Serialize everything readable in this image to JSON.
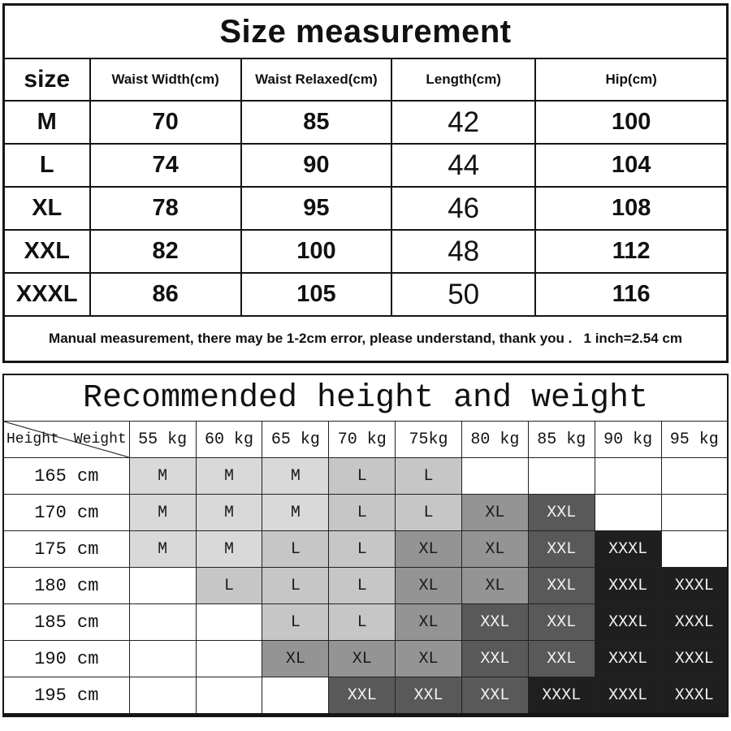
{
  "size_table": {
    "title": "Size measurement",
    "columns": [
      "size",
      "Waist Width(cm)",
      "Waist Relaxed(cm)",
      "Length(cm)",
      "Hip(cm)"
    ],
    "rows": [
      {
        "size": "M",
        "values": [
          "70",
          "85",
          "42",
          "100"
        ]
      },
      {
        "size": "L",
        "values": [
          "74",
          "90",
          "44",
          "104"
        ]
      },
      {
        "size": "XL",
        "values": [
          "78",
          "95",
          "46",
          "108"
        ]
      },
      {
        "size": "XXL",
        "values": [
          "82",
          "100",
          "48",
          "112"
        ]
      },
      {
        "size": "XXXL",
        "values": [
          "86",
          "105",
          "50",
          "116"
        ]
      }
    ],
    "note": "Manual measurement, there may be 1-2cm error, please understand, thank you .   1 inch=2.54 cm"
  },
  "recommendation_table": {
    "title": "Recommended height and weight",
    "corner": {
      "row_axis": "Height",
      "col_axis": "Weight"
    },
    "weight_headers": [
      "55 kg",
      "60 kg",
      "65 kg",
      "70 kg",
      "75kg",
      "80 kg",
      "85 kg",
      "90 kg",
      "95 kg"
    ],
    "rows": [
      {
        "height": "165 cm",
        "cells": [
          "M",
          "M",
          "M",
          "L",
          "L",
          "",
          "",
          "",
          ""
        ]
      },
      {
        "height": "170 cm",
        "cells": [
          "M",
          "M",
          "M",
          "L",
          "L",
          "XL",
          "XXL",
          "",
          ""
        ]
      },
      {
        "height": "175 cm",
        "cells": [
          "M",
          "M",
          "L",
          "L",
          "XL",
          "XL",
          "XXL",
          "XXXL",
          ""
        ]
      },
      {
        "height": "180 cm",
        "cells": [
          "",
          "L",
          "L",
          "L",
          "XL",
          "XL",
          "XXL",
          "XXXL",
          "XXXL"
        ]
      },
      {
        "height": "185 cm",
        "cells": [
          "",
          "",
          "L",
          "L",
          "XL",
          "XXL",
          "XXL",
          "XXXL",
          "XXXL"
        ]
      },
      {
        "height": "190 cm",
        "cells": [
          "",
          "",
          "XL",
          "XL",
          "XL",
          "XXL",
          "XXL",
          "XXXL",
          "XXXL"
        ]
      },
      {
        "height": "195 cm",
        "cells": [
          "",
          "",
          "",
          "XXL",
          "XXL",
          "XXL",
          "XXXL",
          "XXXL",
          "XXXL"
        ]
      }
    ],
    "size_colors": {
      "M": {
        "bg": "#d9d9d9",
        "text": "#1a1a1a"
      },
      "L": {
        "bg": "#c6c6c6",
        "text": "#1a1a1a"
      },
      "XL": {
        "bg": "#949494",
        "text": "#1a1a1a"
      },
      "XXL": {
        "bg": "#595959",
        "text": "#f2f2f2"
      },
      "XXXL": {
        "bg": "#1f1f1f",
        "text": "#f2f2f2"
      }
    },
    "border_color": "#151515",
    "background_color": "#ffffff"
  }
}
